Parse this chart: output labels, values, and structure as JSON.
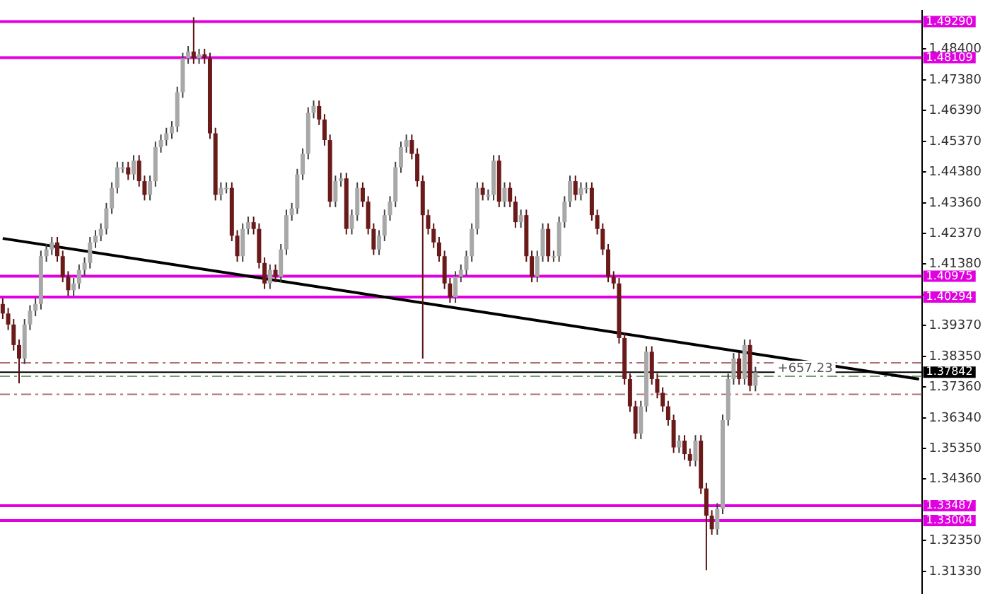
{
  "chart_data": {
    "type": "candlestick",
    "tick_labels": "y",
    "grid": false,
    "legend": false,
    "categories": [
      null,
      null,
      null,
      null,
      null,
      null,
      null,
      null,
      null,
      null,
      null,
      null,
      null,
      null,
      null,
      null,
      null,
      null,
      null,
      null,
      null,
      null,
      null,
      null,
      null,
      null,
      null,
      null,
      null,
      null,
      null,
      null,
      null,
      null,
      null,
      null,
      null,
      null,
      null,
      null,
      null,
      null,
      null,
      null,
      null,
      null,
      null,
      null,
      null,
      null,
      null,
      null,
      null,
      null,
      null,
      null,
      null,
      null,
      null,
      null,
      null,
      null,
      null,
      null,
      null,
      null,
      null,
      null,
      null,
      null,
      null,
      null,
      null,
      null,
      null,
      null,
      null,
      null,
      null,
      null,
      null,
      null,
      null,
      null,
      null,
      null,
      null,
      null,
      null,
      null,
      null,
      null,
      null,
      null,
      null,
      null,
      null,
      null,
      null,
      null,
      null,
      null,
      null,
      null,
      null,
      null,
      null,
      null,
      null,
      null,
      null,
      null,
      null,
      null,
      null,
      null,
      null,
      null,
      null,
      null,
      null,
      null,
      null,
      null,
      null,
      null,
      null,
      null,
      null,
      null,
      null,
      null,
      null,
      null,
      null,
      null,
      null,
      null,
      null,
      null,
      null,
      null,
      null,
      null,
      null,
      null,
      null,
      null,
      null,
      null,
      null,
      null,
      null,
      null,
      null,
      null,
      null,
      null,
      null,
      null,
      null,
      null,
      null,
      null,
      null,
      null,
      null,
      null,
      null
    ],
    "ylim": [
      1.3062,
      1.4965
    ],
    "yticks": [
      {
        "value": 1.484,
        "label": "1.48400"
      },
      {
        "value": 1.4738,
        "label": "1.47380"
      },
      {
        "value": 1.4639,
        "label": "1.46390"
      },
      {
        "value": 1.4537,
        "label": "1.45370"
      },
      {
        "value": 1.4438,
        "label": "1.44380"
      },
      {
        "value": 1.4336,
        "label": "1.43360"
      },
      {
        "value": 1.4237,
        "label": "1.42370"
      },
      {
        "value": 1.4138,
        "label": "1.41380"
      },
      {
        "value": 1.4036,
        "label": null
      },
      {
        "value": 1.3937,
        "label": "1.39370"
      },
      {
        "value": 1.3835,
        "label": "1.38350"
      },
      {
        "value": 1.3736,
        "label": "1.37360"
      },
      {
        "value": 1.3634,
        "label": "1.36340"
      },
      {
        "value": 1.3535,
        "label": "1.35350"
      },
      {
        "value": 1.3436,
        "label": "1.34360"
      },
      {
        "value": 1.3235,
        "label": "1.32350"
      },
      {
        "value": 1.3133,
        "label": "1.31330"
      }
    ],
    "ohlc": [
      [
        1.4007,
        1.4025,
        1.3958,
        1.3976
      ],
      [
        1.3976,
        1.3994,
        1.3922,
        1.394
      ],
      [
        1.394,
        1.3958,
        1.3855,
        1.3873
      ],
      [
        1.3873,
        1.3891,
        1.3748,
        1.3829
      ],
      [
        1.3829,
        1.3958,
        1.3811,
        1.394
      ],
      [
        1.394,
        1.4003,
        1.3922,
        1.3985
      ],
      [
        1.3985,
        1.4025,
        1.3967,
        1.4007
      ],
      [
        1.4007,
        1.4181,
        1.3989,
        1.4163
      ],
      [
        1.4163,
        1.4203,
        1.4145,
        1.4185
      ],
      [
        1.4185,
        1.4226,
        1.4167,
        1.4208
      ],
      [
        1.4208,
        1.4226,
        1.4145,
        1.4163
      ],
      [
        1.4163,
        1.4181,
        1.4078,
        1.4096
      ],
      [
        1.4096,
        1.4114,
        1.4034,
        1.4052
      ],
      [
        1.4052,
        1.4092,
        1.4034,
        1.4074
      ],
      [
        1.4074,
        1.4136,
        1.4056,
        1.4118
      ],
      [
        1.4118,
        1.4159,
        1.41,
        1.4141
      ],
      [
        1.4141,
        1.4226,
        1.4123,
        1.4208
      ],
      [
        1.4208,
        1.4248,
        1.419,
        1.423
      ],
      [
        1.423,
        1.427,
        1.4212,
        1.4252
      ],
      [
        1.4252,
        1.4337,
        1.4234,
        1.4319
      ],
      [
        1.4319,
        1.4404,
        1.4301,
        1.4386
      ],
      [
        1.4386,
        1.4471,
        1.4368,
        1.4453
      ],
      [
        1.4453,
        1.4471,
        1.4435,
        1.4453
      ],
      [
        1.4453,
        1.4471,
        1.4412,
        1.443
      ],
      [
        1.443,
        1.4493,
        1.4412,
        1.4475
      ],
      [
        1.4475,
        1.4493,
        1.439,
        1.4408
      ],
      [
        1.4408,
        1.4426,
        1.4345,
        1.4363
      ],
      [
        1.4363,
        1.4426,
        1.4345,
        1.4408
      ],
      [
        1.4408,
        1.4537,
        1.439,
        1.4519
      ],
      [
        1.4519,
        1.456,
        1.4501,
        1.4542
      ],
      [
        1.4542,
        1.4582,
        1.4524,
        1.4564
      ],
      [
        1.4564,
        1.4604,
        1.4546,
        1.4586
      ],
      [
        1.4586,
        1.4716,
        1.4568,
        1.4698
      ],
      [
        1.4698,
        1.4827,
        1.468,
        1.4809
      ],
      [
        1.4809,
        1.4849,
        1.4791,
        1.4831
      ],
      [
        1.4831,
        1.4943,
        1.4791,
        1.4809
      ],
      [
        1.4809,
        1.484,
        1.4791,
        1.4822
      ],
      [
        1.4822,
        1.484,
        1.4791,
        1.4809
      ],
      [
        1.4809,
        1.4827,
        1.4546,
        1.4564
      ],
      [
        1.4564,
        1.4582,
        1.4345,
        1.4363
      ],
      [
        1.4363,
        1.4404,
        1.4345,
        1.4386
      ],
      [
        1.4386,
        1.4404,
        1.4368,
        1.4386
      ],
      [
        1.4386,
        1.4404,
        1.4212,
        1.423
      ],
      [
        1.423,
        1.4248,
        1.4145,
        1.4163
      ],
      [
        1.4163,
        1.427,
        1.4145,
        1.4252
      ],
      [
        1.4252,
        1.4292,
        1.4234,
        1.4274
      ],
      [
        1.4274,
        1.4292,
        1.4234,
        1.4252
      ],
      [
        1.4252,
        1.427,
        1.4123,
        1.4141
      ],
      [
        1.4141,
        1.4159,
        1.4056,
        1.4074
      ],
      [
        1.4074,
        1.4136,
        1.4056,
        1.4118
      ],
      [
        1.4118,
        1.4136,
        1.4078,
        1.4096
      ],
      [
        1.4096,
        1.4203,
        1.4078,
        1.4185
      ],
      [
        1.4185,
        1.4315,
        1.4167,
        1.4297
      ],
      [
        1.4297,
        1.4337,
        1.4279,
        1.4319
      ],
      [
        1.4319,
        1.4448,
        1.4301,
        1.443
      ],
      [
        1.443,
        1.4515,
        1.4412,
        1.4497
      ],
      [
        1.4497,
        1.4649,
        1.4479,
        1.4631
      ],
      [
        1.4631,
        1.4671,
        1.4613,
        1.4653
      ],
      [
        1.4653,
        1.4671,
        1.4591,
        1.4609
      ],
      [
        1.4609,
        1.4627,
        1.4524,
        1.4542
      ],
      [
        1.4542,
        1.456,
        1.4323,
        1.4341
      ],
      [
        1.4341,
        1.4426,
        1.4323,
        1.4408
      ],
      [
        1.4408,
        1.4435,
        1.439,
        1.4417
      ],
      [
        1.4417,
        1.4435,
        1.4234,
        1.4252
      ],
      [
        1.4252,
        1.4315,
        1.4234,
        1.4297
      ],
      [
        1.4297,
        1.4404,
        1.4279,
        1.4386
      ],
      [
        1.4386,
        1.4404,
        1.4323,
        1.4341
      ],
      [
        1.4341,
        1.4359,
        1.4234,
        1.4252
      ],
      [
        1.4252,
        1.427,
        1.4167,
        1.4185
      ],
      [
        1.4185,
        1.4248,
        1.4167,
        1.423
      ],
      [
        1.423,
        1.4315,
        1.4212,
        1.4297
      ],
      [
        1.4297,
        1.4359,
        1.4279,
        1.4341
      ],
      [
        1.4341,
        1.4471,
        1.4323,
        1.4453
      ],
      [
        1.4453,
        1.4537,
        1.4435,
        1.4519
      ],
      [
        1.4519,
        1.456,
        1.4501,
        1.4542
      ],
      [
        1.4542,
        1.456,
        1.4479,
        1.4497
      ],
      [
        1.4497,
        1.4515,
        1.439,
        1.4408
      ],
      [
        1.4408,
        1.4426,
        1.3829,
        1.4297
      ],
      [
        1.4297,
        1.4315,
        1.4234,
        1.4252
      ],
      [
        1.4252,
        1.427,
        1.419,
        1.4208
      ],
      [
        1.4208,
        1.4226,
        1.4145,
        1.4163
      ],
      [
        1.4163,
        1.4181,
        1.4056,
        1.4074
      ],
      [
        1.4074,
        1.4092,
        1.4011,
        1.4029
      ],
      [
        1.4029,
        1.4114,
        1.4011,
        1.4096
      ],
      [
        1.4096,
        1.4136,
        1.4078,
        1.4118
      ],
      [
        1.4118,
        1.4181,
        1.41,
        1.4163
      ],
      [
        1.4163,
        1.427,
        1.4145,
        1.4252
      ],
      [
        1.4252,
        1.4404,
        1.4234,
        1.4386
      ],
      [
        1.4386,
        1.4404,
        1.4345,
        1.4363
      ],
      [
        1.4363,
        1.4381,
        1.4345,
        1.4363
      ],
      [
        1.4363,
        1.4493,
        1.4345,
        1.4475
      ],
      [
        1.4475,
        1.4493,
        1.4323,
        1.4341
      ],
      [
        1.4341,
        1.4404,
        1.4323,
        1.4386
      ],
      [
        1.4386,
        1.4404,
        1.4323,
        1.4341
      ],
      [
        1.4341,
        1.4359,
        1.4256,
        1.4274
      ],
      [
        1.4274,
        1.4315,
        1.4256,
        1.4297
      ],
      [
        1.4297,
        1.4315,
        1.4145,
        1.4163
      ],
      [
        1.4163,
        1.4181,
        1.4078,
        1.4096
      ],
      [
        1.4096,
        1.4181,
        1.4078,
        1.4163
      ],
      [
        1.4163,
        1.427,
        1.4145,
        1.4252
      ],
      [
        1.4252,
        1.427,
        1.4145,
        1.4163
      ],
      [
        1.4163,
        1.4181,
        1.4145,
        1.4163
      ],
      [
        1.4163,
        1.4292,
        1.4145,
        1.4274
      ],
      [
        1.4274,
        1.4359,
        1.4256,
        1.4341
      ],
      [
        1.4341,
        1.4426,
        1.4323,
        1.4408
      ],
      [
        1.4408,
        1.4426,
        1.4345,
        1.4363
      ],
      [
        1.4363,
        1.4404,
        1.4345,
        1.4386
      ],
      [
        1.4386,
        1.4404,
        1.4368,
        1.4386
      ],
      [
        1.4386,
        1.4404,
        1.4279,
        1.4297
      ],
      [
        1.4297,
        1.4315,
        1.4234,
        1.4252
      ],
      [
        1.4252,
        1.427,
        1.4167,
        1.4185
      ],
      [
        1.4185,
        1.4203,
        1.4078,
        1.4096
      ],
      [
        1.4096,
        1.4114,
        1.4056,
        1.4074
      ],
      [
        1.4074,
        1.4092,
        1.3878,
        1.3896
      ],
      [
        1.3896,
        1.3914,
        1.3744,
        1.3762
      ],
      [
        1.3762,
        1.378,
        1.3655,
        1.3673
      ],
      [
        1.3673,
        1.3691,
        1.3566,
        1.3584
      ],
      [
        1.3584,
        1.3691,
        1.3566,
        1.3673
      ],
      [
        1.3673,
        1.3869,
        1.3655,
        1.3851
      ],
      [
        1.3851,
        1.3869,
        1.3744,
        1.3762
      ],
      [
        1.3762,
        1.378,
        1.3699,
        1.3717
      ],
      [
        1.3717,
        1.3735,
        1.3655,
        1.3673
      ],
      [
        1.3673,
        1.3691,
        1.361,
        1.3628
      ],
      [
        1.3628,
        1.3646,
        1.3521,
        1.3539
      ],
      [
        1.3539,
        1.3579,
        1.3521,
        1.3561
      ],
      [
        1.3561,
        1.3579,
        1.3499,
        1.3517
      ],
      [
        1.3517,
        1.3535,
        1.3477,
        1.3495
      ],
      [
        1.3495,
        1.3579,
        1.3477,
        1.3561
      ],
      [
        1.3561,
        1.3579,
        1.3387,
        1.3405
      ],
      [
        1.3405,
        1.3423,
        1.3138,
        1.3316
      ],
      [
        1.3316,
        1.3334,
        1.3254,
        1.3272
      ],
      [
        1.3272,
        1.3357,
        1.3254,
        1.3339
      ],
      [
        1.3339,
        1.3646,
        1.3321,
        1.3628
      ],
      [
        1.3628,
        1.378,
        1.361,
        1.3762
      ],
      [
        1.3762,
        1.3847,
        1.3744,
        1.3829
      ],
      [
        1.3829,
        1.3847,
        1.3744,
        1.3762
      ],
      [
        1.3762,
        1.3891,
        1.3744,
        1.3873
      ],
      [
        1.3873,
        1.3891,
        1.3722,
        1.374
      ],
      [
        1.374,
        1.3802,
        1.3722,
        1.3784
      ],
      null,
      null,
      null,
      null,
      null,
      null,
      null,
      null,
      null,
      null,
      null,
      null,
      null,
      null,
      null,
      null,
      null,
      null,
      null,
      null,
      null,
      null,
      null,
      null,
      null,
      null,
      null,
      null,
      null,
      null
    ],
    "annotations": [
      {
        "text": "+657.23",
        "y": 1.3771
      }
    ],
    "series": [
      {
        "type": "line",
        "color": "#000000",
        "line_style": "solid",
        "values": [
          1.4221,
          null,
          null,
          null,
          null,
          null,
          null,
          null,
          null,
          null,
          null,
          null,
          null,
          null,
          null,
          null,
          null,
          null,
          null,
          null,
          null,
          null,
          null,
          null,
          null,
          null,
          null,
          null,
          null,
          null,
          null,
          null,
          null,
          null,
          null,
          null,
          null,
          null,
          null,
          null,
          null,
          null,
          null,
          null,
          null,
          null,
          null,
          null,
          null,
          null,
          null,
          null,
          null,
          null,
          null,
          null,
          null,
          null,
          null,
          null,
          null,
          null,
          null,
          null,
          null,
          null,
          null,
          null,
          null,
          null,
          null,
          null,
          null,
          null,
          null,
          null,
          null,
          null,
          null,
          null,
          null,
          null,
          null,
          null,
          null,
          null,
          null,
          null,
          null,
          null,
          null,
          null,
          null,
          null,
          null,
          null,
          null,
          null,
          null,
          null,
          null,
          null,
          null,
          null,
          null,
          null,
          null,
          null,
          null,
          null,
          null,
          null,
          null,
          null,
          null,
          null,
          null,
          null,
          null,
          null,
          null,
          null,
          null,
          null,
          null,
          null,
          null,
          null,
          null,
          null,
          null,
          null,
          null,
          null,
          null,
          null,
          null,
          null,
          null,
          null,
          null,
          null,
          null,
          null,
          null,
          null,
          null,
          null,
          null,
          null,
          null,
          null,
          null,
          null,
          null,
          null,
          null,
          null,
          null,
          null,
          null,
          null,
          null,
          null,
          null,
          null,
          null,
          null,
          1.3762
        ]
      }
    ],
    "ref_lines": [
      {
        "axis": "y",
        "value": 1.4929,
        "label": "1.49290",
        "color": "#e000e0",
        "line_style": "solid"
      },
      {
        "axis": "y",
        "value": 1.48109,
        "label": "1.48109",
        "color": "#e000e0",
        "line_style": "solid"
      },
      {
        "axis": "y",
        "value": 1.40975,
        "label": "1.40975",
        "color": "#e000e0",
        "line_style": "solid"
      },
      {
        "axis": "y",
        "value": 1.40294,
        "label": "1.40294",
        "color": "#e000e0",
        "line_style": "solid"
      },
      {
        "axis": "y",
        "value": 1.33487,
        "label": "1.33487",
        "color": "#e000e0",
        "line_style": "solid"
      },
      {
        "axis": "y",
        "value": 1.33004,
        "label": "1.33004",
        "color": "#e000e0",
        "line_style": "solid"
      },
      {
        "axis": "y",
        "value": 1.3815,
        "color": "#b07070",
        "line_style": "dashed"
      },
      {
        "axis": "y",
        "value": 1.3712,
        "color": "#b07070",
        "line_style": "dashed"
      },
      {
        "axis": "y",
        "value": 1.3771,
        "color": "#70a070",
        "line_style": "dashed"
      },
      {
        "axis": "y",
        "value": 1.37842,
        "label": "1.37842",
        "color": "#000000",
        "line_style": "solid"
      }
    ]
  }
}
